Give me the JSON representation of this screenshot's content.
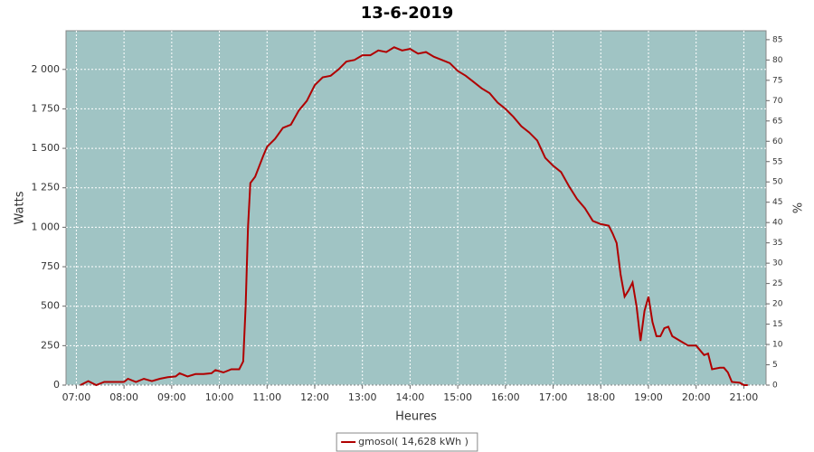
{
  "chart_data": {
    "type": "line",
    "title": "13-6-2019",
    "x_label": "Heures",
    "y_label": "Watts",
    "y2_label": "%",
    "background": "#a0c4c4",
    "grid": true,
    "legend": "bottom",
    "xlim": [
      "06:47",
      "21:28"
    ],
    "xticks": [
      "07:00",
      "08:00",
      "09:00",
      "10:00",
      "11:00",
      "12:00",
      "13:00",
      "14:00",
      "15:00",
      "16:00",
      "17:00",
      "18:00",
      "19:00",
      "20:00",
      "21:00"
    ],
    "ylim": [
      0,
      2245
    ],
    "yticks": [
      0,
      250,
      500,
      750,
      {
        "value": 1000,
        "label": "1 000"
      },
      {
        "value": 1250,
        "label": "1 250"
      },
      {
        "value": 1500,
        "label": "1 500"
      },
      {
        "value": 1750,
        "label": "1 750"
      },
      {
        "value": 2000,
        "label": "2 000"
      }
    ],
    "y2lim": [
      0,
      87.2
    ],
    "y2ticks": [
      0,
      5,
      10,
      15,
      20,
      25,
      30,
      35,
      40,
      45,
      50,
      55,
      60,
      65,
      70,
      75,
      80,
      85
    ],
    "x": [
      "07:05",
      "07:15",
      "07:25",
      "07:35",
      "07:50",
      "08:00",
      "08:05",
      "08:15",
      "08:25",
      "08:35",
      "08:45",
      "08:55",
      "09:05",
      "09:10",
      "09:20",
      "09:30",
      "09:40",
      "09:50",
      "09:55",
      "10:05",
      "10:15",
      "10:25",
      "10:30",
      "10:33",
      "10:36",
      "10:39",
      "10:45",
      "10:55",
      "11:00",
      "11:10",
      "11:20",
      "11:30",
      "11:40",
      "11:50",
      "12:00",
      "12:10",
      "12:20",
      "12:30",
      "12:40",
      "12:50",
      "13:00",
      "13:10",
      "13:20",
      "13:30",
      "13:40",
      "13:50",
      "14:00",
      "14:10",
      "14:20",
      "14:30",
      "14:40",
      "14:50",
      "15:00",
      "15:10",
      "15:20",
      "15:30",
      "15:40",
      "15:50",
      "16:00",
      "16:10",
      "16:20",
      "16:30",
      "16:40",
      "16:50",
      "17:00",
      "17:10",
      "17:20",
      "17:30",
      "17:40",
      "17:50",
      "18:00",
      "18:10",
      "18:15",
      "18:20",
      "18:25",
      "18:30",
      "18:35",
      "18:40",
      "18:45",
      "18:50",
      "18:55",
      "19:00",
      "19:05",
      "19:10",
      "19:15",
      "19:20",
      "19:25",
      "19:30",
      "19:40",
      "19:50",
      "20:00",
      "20:10",
      "20:15",
      "20:20",
      "20:30",
      "20:35",
      "20:40",
      "20:45",
      "20:55",
      "21:00",
      "21:05"
    ],
    "series": [
      {
        "name": "gmosol( 14,628 kWh )",
        "color": "#b00000",
        "values": [
          0,
          25,
          0,
          20,
          20,
          20,
          40,
          20,
          40,
          25,
          40,
          50,
          55,
          75,
          55,
          70,
          70,
          75,
          95,
          80,
          100,
          100,
          150,
          500,
          1000,
          1280,
          1320,
          1450,
          1510,
          1560,
          1630,
          1650,
          1740,
          1800,
          1900,
          1950,
          1960,
          2000,
          2050,
          2060,
          2090,
          2090,
          2120,
          2110,
          2140,
          2120,
          2130,
          2100,
          2110,
          2080,
          2060,
          2040,
          1990,
          1960,
          1920,
          1880,
          1850,
          1790,
          1750,
          1700,
          1640,
          1600,
          1550,
          1440,
          1390,
          1350,
          1260,
          1180,
          1120,
          1040,
          1020,
          1010,
          960,
          900,
          700,
          560,
          600,
          650,
          500,
          280,
          470,
          560,
          400,
          310,
          310,
          360,
          370,
          310,
          280,
          250,
          250,
          190,
          200,
          100,
          110,
          110,
          80,
          20,
          15,
          0,
          0
        ]
      }
    ]
  }
}
